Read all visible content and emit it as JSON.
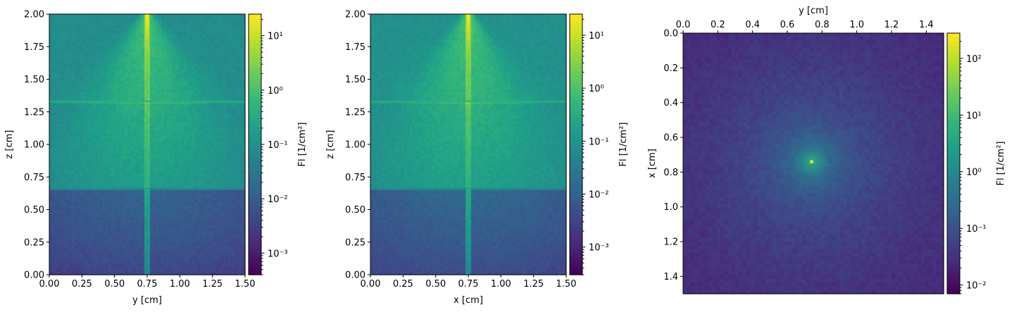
{
  "chart_data": [
    {
      "type": "heatmap",
      "title": "",
      "xlabel": "y [cm]",
      "ylabel": "z [cm]",
      "xlim": [
        0,
        1.5
      ],
      "ylim": [
        0,
        2.0
      ],
      "x_ticks": [
        "0.00",
        "0.25",
        "0.50",
        "0.75",
        "1.00",
        "1.25",
        "1.50"
      ],
      "y_ticks": [
        "0.00",
        "0.25",
        "0.50",
        "0.75",
        "1.00",
        "1.25",
        "1.50",
        "1.75",
        "2.00"
      ],
      "colorbar": {
        "label": "Fl [1/cm²]",
        "scale": "log",
        "range": [
          0.0004,
          25
        ],
        "ticks": [
          {
            "value": 0.001,
            "label": "10⁻³"
          },
          {
            "value": 0.01,
            "label": "10⁻²"
          },
          {
            "value": 0.1,
            "label": "10⁻¹"
          },
          {
            "value": 1,
            "label": "10⁰"
          },
          {
            "value": 10,
            "label": "10¹"
          }
        ]
      },
      "colormap": "viridis",
      "features": {
        "beam_center": 0.75,
        "beam_entry_z": 2.0,
        "layer_boundaries_z": [
          0.66,
          1.33
        ],
        "value_deep_layer": 0.003,
        "value_mid_layer": 0.06,
        "value_top_layer": 0.09,
        "value_beam_peak": 25
      }
    },
    {
      "type": "heatmap",
      "title": "",
      "xlabel": "x [cm]",
      "ylabel": "z [cm]",
      "xlim": [
        0,
        1.5
      ],
      "ylim": [
        0,
        2.0
      ],
      "x_ticks": [
        "0.00",
        "0.25",
        "0.50",
        "0.75",
        "1.00",
        "1.25",
        "1.50"
      ],
      "y_ticks": [
        "0.00",
        "0.25",
        "0.50",
        "0.75",
        "1.00",
        "1.25",
        "1.50",
        "1.75",
        "2.00"
      ],
      "colorbar": {
        "label": "Fl [1/cm²]",
        "scale": "log",
        "range": [
          0.0003,
          25
        ],
        "ticks": [
          {
            "value": 0.001,
            "label": "10⁻³"
          },
          {
            "value": 0.01,
            "label": "10⁻²"
          },
          {
            "value": 0.1,
            "label": "10⁻¹"
          },
          {
            "value": 1,
            "label": "10⁰"
          },
          {
            "value": 10,
            "label": "10¹"
          }
        ]
      },
      "colormap": "viridis",
      "features": {
        "beam_center": 0.75,
        "beam_entry_z": 2.0,
        "layer_boundaries_z": [
          0.66,
          1.33
        ],
        "value_deep_layer": 0.003,
        "value_mid_layer": 0.06,
        "value_top_layer": 0.09,
        "value_beam_peak": 25
      }
    },
    {
      "type": "heatmap",
      "title": "",
      "xlabel": "y [cm]",
      "ylabel": "x [cm]",
      "xlim": [
        0,
        1.5
      ],
      "ylim": [
        1.5,
        0
      ],
      "x_ticks": [
        "0.0",
        "0.2",
        "0.4",
        "0.6",
        "0.8",
        "1.0",
        "1.2",
        "1.4"
      ],
      "y_ticks": [
        "0.0",
        "0.2",
        "0.4",
        "0.6",
        "0.8",
        "1.0",
        "1.2",
        "1.4"
      ],
      "xaxis_position": "top",
      "colorbar": {
        "label": "Fl [1/cm²]",
        "scale": "log",
        "range": [
          0.007,
          280
        ],
        "ticks": [
          {
            "value": 0.01,
            "label": "10⁻²"
          },
          {
            "value": 0.1,
            "label": "10⁻¹"
          },
          {
            "value": 1,
            "label": "10⁰"
          },
          {
            "value": 10,
            "label": "10¹"
          },
          {
            "value": 100,
            "label": "10²"
          }
        ]
      },
      "colormap": "viridis",
      "features": {
        "hotspot_center": [
          0.74,
          0.74
        ],
        "value_background": 0.02,
        "value_peak": 280
      }
    }
  ]
}
